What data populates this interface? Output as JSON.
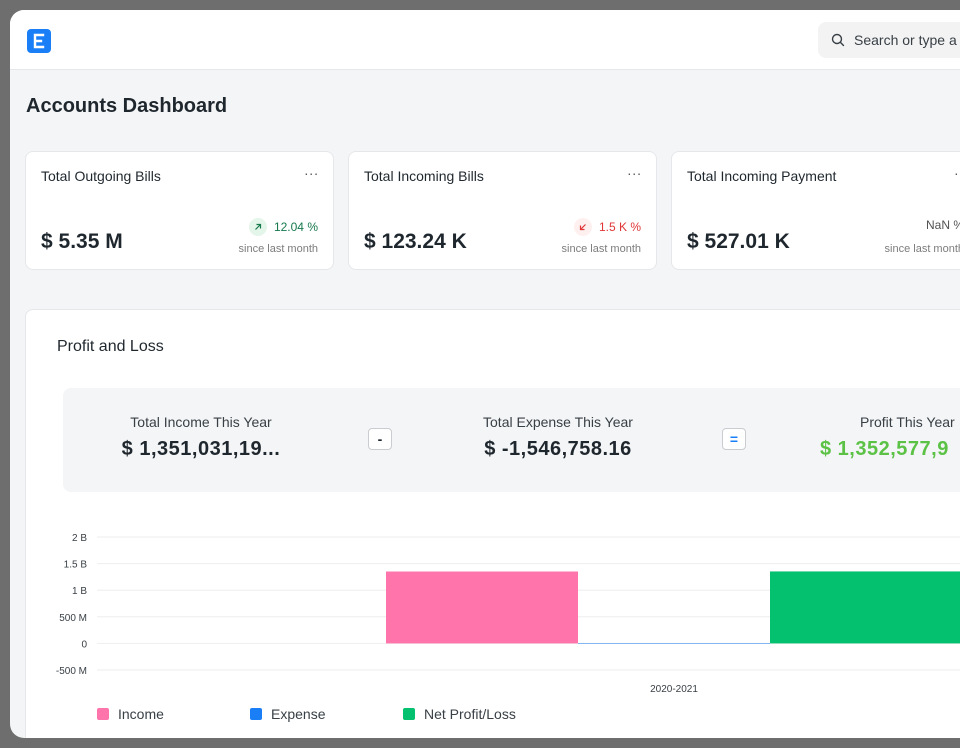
{
  "navbar": {
    "search_placeholder": "Search or type a"
  },
  "page": {
    "title": "Accounts Dashboard"
  },
  "cards": [
    {
      "label": "Total Outgoing Bills",
      "value": "$ 5.35 M",
      "change": "12.04 %",
      "trend": "up",
      "since": "since last month"
    },
    {
      "label": "Total Incoming Bills",
      "value": "$ 123.24 K",
      "change": "1.5 K %",
      "trend": "down",
      "since": "since last month"
    },
    {
      "label": "Total Incoming Payment",
      "value": "$ 527.01 K",
      "change": "NaN %",
      "trend": "neutral",
      "since": "since last month"
    }
  ],
  "card_menu": "...",
  "profit_loss": {
    "title": "Profit and Loss",
    "income_label": "Total Income This Year",
    "income_value": "$ 1,351,031,19...",
    "minus": "-",
    "expense_label": "Total Expense This Year",
    "expense_value": "$ -1,546,758.16",
    "equals": "=",
    "profit_label": "Profit This Year",
    "profit_value": "$ 1,352,577,9",
    "profit_color": "#5bc246"
  },
  "chart_data": {
    "type": "bar",
    "categories": [
      "2020-2021"
    ],
    "series": [
      {
        "name": "Income",
        "values": [
          1351031190
        ],
        "color": "#ff74aa"
      },
      {
        "name": "Expense",
        "values": [
          -1546758.16
        ],
        "color": "#1a7ff7"
      },
      {
        "name": "Net Profit/Loss",
        "values": [
          1352577948
        ],
        "color": "#03c16e"
      }
    ],
    "yticks": [
      "2 B",
      "1.5 B",
      "1 B",
      "500 M",
      "0",
      "-500 M"
    ],
    "ylim": [
      -500000000,
      2000000000
    ],
    "grid": true,
    "legend": "bottom-left"
  }
}
